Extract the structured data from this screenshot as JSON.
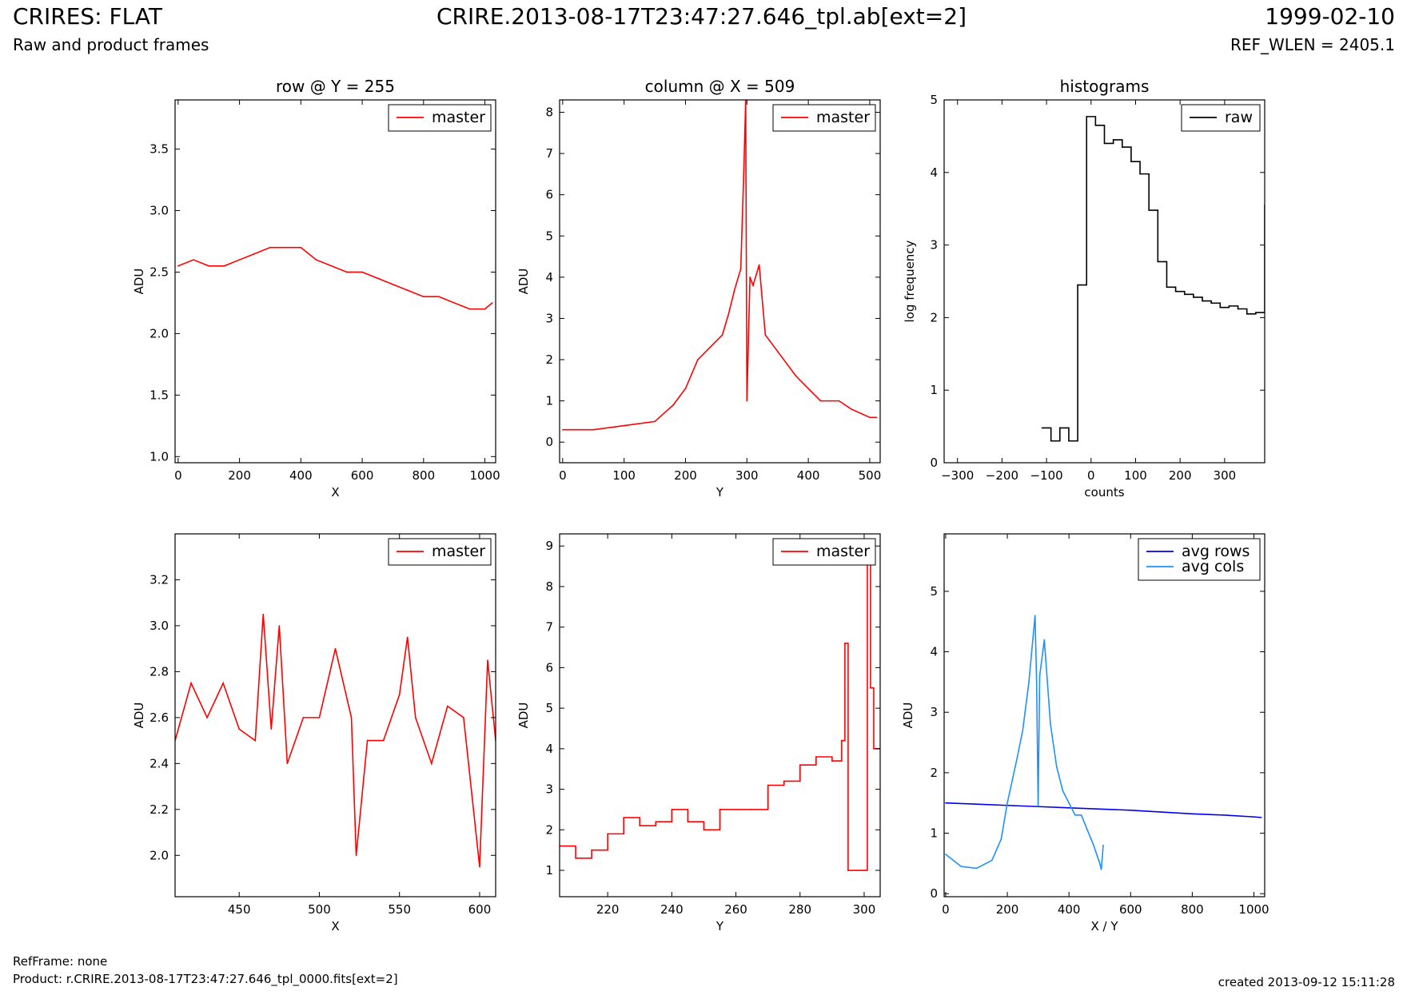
{
  "header": {
    "title": "CRIRES: FLAT",
    "subtitle": "Raw and product frames",
    "file": "CRIRE.2013-08-17T23:47:27.646_tpl.ab[ext=2]",
    "date": "1999-02-10",
    "ref_wlen": "REF_WLEN = 2405.1"
  },
  "footer": {
    "refframe": "RefFrame: none",
    "product": "Product: r.CRIRE.2013-08-17T23:47:27.646_tpl_0000.fits[ext=2]",
    "created": "created 2013-09-12 15:11:28"
  },
  "colors": {
    "master": "#ff0000",
    "raw": "#000000",
    "avg_rows": "#0000ee",
    "avg_cols": "#1e90ff"
  },
  "chart_data": [
    {
      "id": "row",
      "type": "line",
      "title": "row @ Y = 255",
      "xlabel": "X",
      "ylabel": "ADU",
      "xlim": [
        -10,
        1035
      ],
      "ylim": [
        0.95,
        3.9
      ],
      "xticks": [
        0,
        200,
        400,
        600,
        800,
        1000
      ],
      "yticks": [
        1.0,
        1.5,
        2.0,
        2.5,
        3.0,
        3.5
      ],
      "legend": "upper right",
      "series": [
        {
          "name": "master",
          "color": "#ff0000",
          "x": [
            0,
            50,
            100,
            150,
            200,
            250,
            300,
            350,
            400,
            450,
            500,
            550,
            600,
            650,
            700,
            750,
            800,
            850,
            900,
            950,
            1000,
            1024
          ],
          "y": [
            2.55,
            2.6,
            2.55,
            2.55,
            2.6,
            2.65,
            2.7,
            2.7,
            2.7,
            2.6,
            2.55,
            2.5,
            2.5,
            2.45,
            2.4,
            2.35,
            2.3,
            2.3,
            2.25,
            2.2,
            2.2,
            2.25
          ]
        }
      ]
    },
    {
      "id": "column",
      "type": "line",
      "title": "column @ X = 509",
      "xlabel": "Y",
      "ylabel": "ADU",
      "xlim": [
        -5,
        517
      ],
      "ylim": [
        -0.5,
        8.3
      ],
      "xticks": [
        0,
        100,
        200,
        300,
        400,
        500
      ],
      "yticks": [
        0,
        1,
        2,
        3,
        4,
        5,
        6,
        7,
        8
      ],
      "legend": "upper right",
      "series": [
        {
          "name": "master",
          "color": "#ff0000",
          "x": [
            0,
            50,
            100,
            150,
            180,
            200,
            220,
            240,
            260,
            270,
            280,
            290,
            295,
            298,
            300,
            305,
            310,
            320,
            330,
            350,
            380,
            400,
            420,
            450,
            470,
            500,
            511
          ],
          "y": [
            0.3,
            0.3,
            0.4,
            0.5,
            0.9,
            1.3,
            2.0,
            2.3,
            2.6,
            3.1,
            3.7,
            4.2,
            6.6,
            8.3,
            1.0,
            4.0,
            3.8,
            4.3,
            2.6,
            2.2,
            1.6,
            1.3,
            1.0,
            1.0,
            0.8,
            0.6,
            0.6
          ]
        }
      ]
    },
    {
      "id": "histograms",
      "type": "line",
      "title": "histograms",
      "xlabel": "counts",
      "ylabel": "log frequency",
      "xlim": [
        -330,
        390
      ],
      "ylim": [
        0,
        5
      ],
      "xticks": [
        -300,
        -200,
        -100,
        0,
        100,
        200,
        300
      ],
      "yticks": [
        0,
        1,
        2,
        3,
        4,
        5
      ],
      "legend": "upper right",
      "series": [
        {
          "name": "raw",
          "color": "#000000",
          "x": [
            -110,
            -90,
            -70,
            -50,
            -30,
            -10,
            10,
            30,
            50,
            70,
            90,
            110,
            130,
            150,
            170,
            190,
            210,
            230,
            250,
            270,
            290,
            310,
            330,
            350,
            370,
            390
          ],
          "y": [
            0.48,
            0.3,
            0.48,
            0.3,
            2.45,
            4.77,
            4.65,
            4.4,
            4.45,
            4.35,
            4.15,
            3.98,
            3.48,
            2.77,
            2.42,
            2.36,
            2.32,
            2.28,
            2.23,
            2.2,
            2.14,
            2.16,
            2.12,
            2.05,
            2.07,
            3.55
          ]
        }
      ]
    },
    {
      "id": "row_zoom",
      "type": "line",
      "xlabel": "X",
      "ylabel": "ADU",
      "xlim": [
        410,
        610
      ],
      "ylim": [
        1.82,
        3.4
      ],
      "xticks": [
        450,
        500,
        550,
        600
      ],
      "yticks": [
        2.0,
        2.2,
        2.4,
        2.6,
        2.8,
        3.0,
        3.2
      ],
      "legend": "upper right",
      "series": [
        {
          "name": "master",
          "color": "#ff0000",
          "x": [
            410,
            420,
            430,
            440,
            450,
            460,
            465,
            470,
            475,
            480,
            490,
            500,
            510,
            520,
            523,
            530,
            540,
            550,
            555,
            560,
            570,
            580,
            590,
            600,
            605,
            610
          ],
          "y": [
            2.5,
            2.75,
            2.6,
            2.75,
            2.55,
            2.5,
            3.05,
            2.55,
            3.0,
            2.4,
            2.6,
            2.6,
            2.9,
            2.6,
            2.0,
            2.5,
            2.5,
            2.7,
            2.95,
            2.6,
            2.4,
            2.65,
            2.6,
            1.95,
            2.85,
            2.5
          ]
        }
      ]
    },
    {
      "id": "column_zoom",
      "type": "line",
      "xlabel": "Y",
      "ylabel": "ADU",
      "xlim": [
        205,
        305
      ],
      "ylim": [
        0.35,
        9.3
      ],
      "xticks": [
        220,
        240,
        260,
        280,
        300
      ],
      "yticks": [
        1,
        2,
        3,
        4,
        5,
        6,
        7,
        8,
        9
      ],
      "legend": "upper right",
      "series": [
        {
          "name": "master",
          "color": "#ff0000",
          "x": [
            205,
            210,
            215,
            220,
            225,
            230,
            235,
            240,
            245,
            250,
            255,
            260,
            265,
            270,
            275,
            280,
            285,
            290,
            293,
            294,
            295,
            300,
            301,
            302,
            303,
            305
          ],
          "y": [
            1.6,
            1.3,
            1.5,
            1.9,
            2.3,
            2.1,
            2.2,
            2.5,
            2.2,
            2.0,
            2.5,
            2.5,
            2.5,
            3.1,
            3.2,
            3.6,
            3.8,
            3.7,
            4.2,
            6.6,
            1.0,
            1.0,
            8.8,
            5.5,
            4.0,
            4.0
          ]
        }
      ]
    },
    {
      "id": "averages",
      "type": "line",
      "xlabel": "X / Y",
      "ylabel": "ADU",
      "xlim": [
        -5,
        1035
      ],
      "ylim": [
        -0.05,
        5.95
      ],
      "xticks": [
        0,
        200,
        400,
        600,
        800,
        1000
      ],
      "yticks": [
        0,
        1,
        2,
        3,
        4,
        5
      ],
      "legend": "upper right",
      "series": [
        {
          "name": "avg rows",
          "color": "#0000ee",
          "x": [
            0,
            100,
            200,
            300,
            400,
            500,
            600,
            700,
            800,
            900,
            1000,
            1024
          ],
          "y": [
            1.5,
            1.48,
            1.46,
            1.44,
            1.42,
            1.4,
            1.38,
            1.35,
            1.32,
            1.3,
            1.27,
            1.26
          ]
        },
        {
          "name": "avg cols",
          "color": "#1e90ff",
          "x": [
            0,
            50,
            100,
            150,
            180,
            200,
            230,
            250,
            270,
            290,
            295,
            300,
            305,
            320,
            340,
            360,
            380,
            400,
            420,
            440,
            460,
            480,
            500,
            505,
            511
          ],
          "y": [
            0.65,
            0.45,
            0.42,
            0.55,
            0.9,
            1.5,
            2.2,
            2.7,
            3.5,
            4.6,
            3.5,
            1.45,
            3.6,
            4.2,
            2.8,
            2.1,
            1.7,
            1.5,
            1.3,
            1.3,
            1.05,
            0.8,
            0.5,
            0.4,
            0.8
          ]
        }
      ]
    }
  ]
}
